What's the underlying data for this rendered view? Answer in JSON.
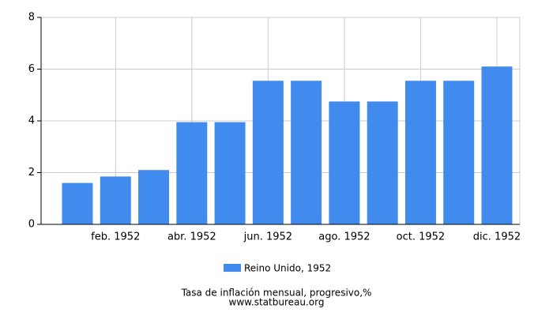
{
  "chart_data": {
    "type": "bar",
    "title": "Tasa de inflación mensual, progresivo,%",
    "source": "www.statbureau.org",
    "categories": [
      null,
      "feb. 1952",
      null,
      "abr. 1952",
      null,
      "jun. 1952",
      null,
      "ago. 1952",
      null,
      "oct. 1952",
      null,
      "dic. 1952"
    ],
    "series": [
      {
        "name": "Reino Unido, 1952",
        "color": "#428bee",
        "values": [
          1.6,
          1.85,
          2.1,
          3.95,
          3.95,
          5.55,
          5.55,
          4.75,
          4.75,
          5.55,
          5.55,
          6.1
        ]
      }
    ],
    "ylim": [
      0,
      8
    ],
    "yticks": [
      0,
      2,
      4,
      6,
      8
    ],
    "grid": true
  }
}
